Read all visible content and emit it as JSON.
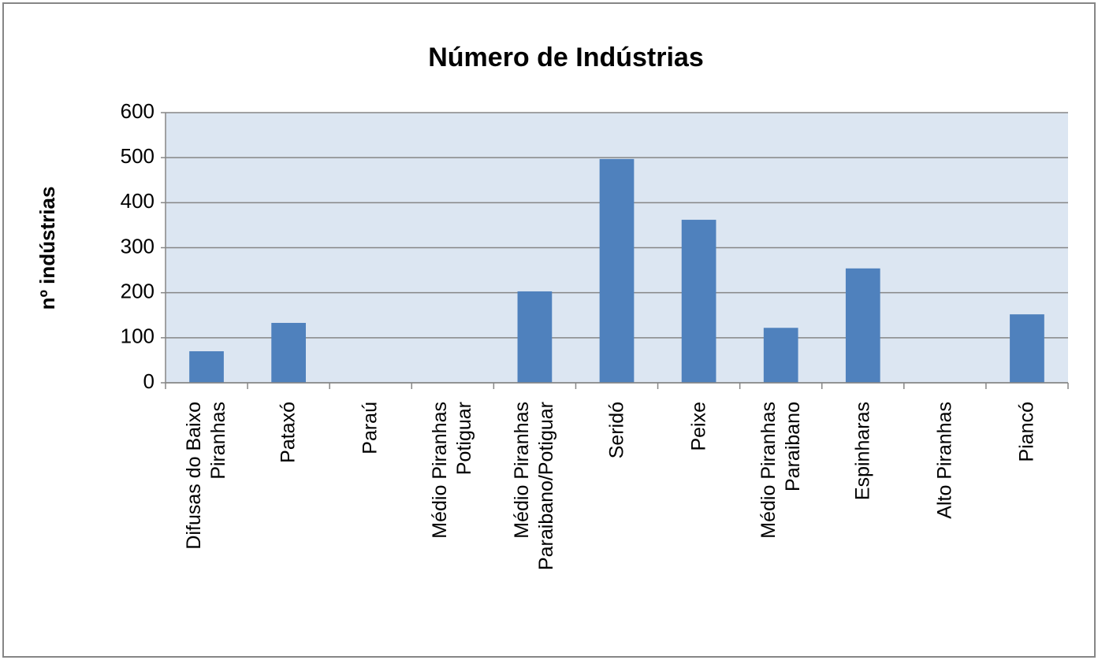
{
  "chart_data": {
    "type": "bar",
    "title": "Número de Indústrias",
    "y_label": "nº indústrias",
    "categories": [
      "Difusas do Baixo Piranhas",
      "Pataxó",
      "Paraú",
      "Médio Piranhas Potiguar",
      "Médio Piranhas Paraibano/Potiguar",
      "Seridó",
      "Peixe",
      "Médio Piranhas Paraibano",
      "Espinharas",
      "Alto Piranhas",
      "Piancó"
    ],
    "values": [
      70,
      133,
      0,
      0,
      203,
      497,
      362,
      122,
      254,
      0,
      152
    ],
    "color": "#4f81bd",
    "ylim": [
      0,
      600
    ],
    "yticks": [
      0,
      100,
      200,
      300,
      400,
      500,
      600
    ],
    "grid": true
  }
}
